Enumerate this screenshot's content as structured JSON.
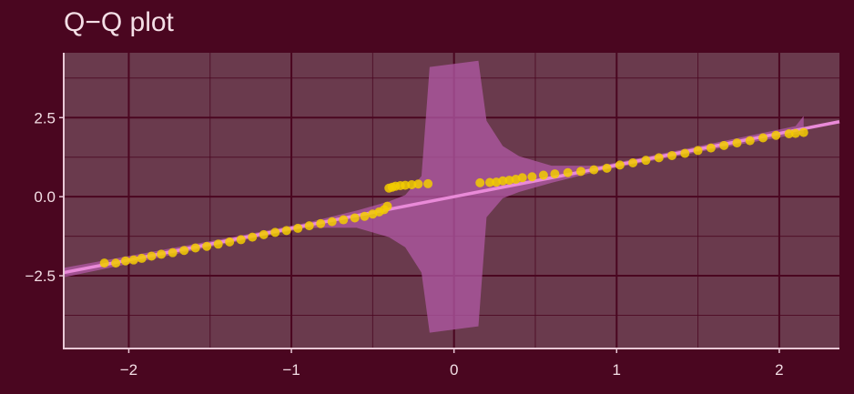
{
  "chart_data": {
    "type": "scatter",
    "title": "Q−Q plot",
    "xlabel": "",
    "ylabel": "",
    "xlim": [
      -2.4,
      2.37
    ],
    "ylim": [
      -4.8,
      4.55
    ],
    "x_ticks": [
      -2,
      -1,
      0,
      1,
      2
    ],
    "x_tick_labels": [
      "−2",
      "−1",
      "0",
      "1",
      "2"
    ],
    "y_ticks": [
      -2.5,
      0.0,
      2.5
    ],
    "y_tick_labels": [
      "−2.5",
      "0.0",
      "2.5"
    ],
    "grid": true,
    "reference_line": {
      "slope": 1,
      "intercept": 0
    },
    "confidence_band": [
      [
        -2.4,
        -2.25,
        -2.55
      ],
      [
        -2.1,
        -1.97,
        -2.23
      ],
      [
        -1.8,
        -1.69,
        -1.91
      ],
      [
        -1.5,
        -1.41,
        -1.59
      ],
      [
        -1.2,
        -1.12,
        -1.28
      ],
      [
        -0.9,
        -0.82,
        -0.98
      ],
      [
        -0.6,
        -0.44,
        -0.98
      ],
      [
        -0.4,
        -0.15,
        -1.28
      ],
      [
        -0.3,
        0.05,
        -1.6
      ],
      [
        -0.2,
        0.65,
        -2.4
      ],
      [
        -0.15,
        4.1,
        -4.3
      ],
      [
        0.15,
        4.3,
        -4.1
      ],
      [
        0.2,
        2.4,
        -0.65
      ],
      [
        0.3,
        1.6,
        -0.05
      ],
      [
        0.4,
        1.28,
        0.15
      ],
      [
        0.6,
        0.98,
        0.44
      ],
      [
        0.9,
        0.98,
        0.82
      ],
      [
        1.2,
        1.28,
        1.12
      ],
      [
        1.5,
        1.59,
        1.41
      ],
      [
        1.8,
        1.91,
        1.69
      ],
      [
        2.1,
        2.23,
        1.97
      ],
      [
        2.15,
        2.55,
        1.97
      ]
    ],
    "series": [
      {
        "points": [
          [
            -2.15,
            -2.1
          ],
          [
            -2.08,
            -2.1
          ],
          [
            -2.02,
            -2.03
          ],
          [
            -1.97,
            -2.0
          ],
          [
            -1.92,
            -1.95
          ],
          [
            -1.86,
            -1.88
          ],
          [
            -1.8,
            -1.82
          ],
          [
            -1.73,
            -1.77
          ],
          [
            -1.66,
            -1.7
          ],
          [
            -1.59,
            -1.62
          ],
          [
            -1.52,
            -1.57
          ],
          [
            -1.45,
            -1.5
          ],
          [
            -1.38,
            -1.43
          ],
          [
            -1.31,
            -1.36
          ],
          [
            -1.24,
            -1.28
          ],
          [
            -1.17,
            -1.2
          ],
          [
            -1.1,
            -1.13
          ],
          [
            -1.03,
            -1.07
          ],
          [
            -0.96,
            -1.0
          ],
          [
            -0.89,
            -0.92
          ],
          [
            -0.82,
            -0.85
          ],
          [
            -0.75,
            -0.79
          ],
          [
            -0.68,
            -0.73
          ],
          [
            -0.61,
            -0.67
          ],
          [
            -0.55,
            -0.62
          ],
          [
            -0.5,
            -0.55
          ],
          [
            -0.46,
            -0.48
          ],
          [
            -0.43,
            -0.41
          ],
          [
            -0.41,
            -0.3
          ],
          [
            -0.4,
            0.27
          ],
          [
            -0.38,
            0.3
          ],
          [
            -0.36,
            0.33
          ],
          [
            -0.33,
            0.35
          ],
          [
            -0.3,
            0.36
          ],
          [
            -0.26,
            0.38
          ],
          [
            -0.22,
            0.4
          ],
          [
            -0.16,
            0.41
          ],
          [
            0.16,
            0.44
          ],
          [
            0.22,
            0.45
          ],
          [
            0.26,
            0.46
          ],
          [
            0.3,
            0.5
          ],
          [
            0.34,
            0.52
          ],
          [
            0.38,
            0.55
          ],
          [
            0.42,
            0.6
          ],
          [
            0.48,
            0.63
          ],
          [
            0.55,
            0.68
          ],
          [
            0.62,
            0.72
          ],
          [
            0.7,
            0.76
          ],
          [
            0.78,
            0.8
          ],
          [
            0.86,
            0.85
          ],
          [
            0.94,
            0.9
          ],
          [
            1.02,
            1.0
          ],
          [
            1.1,
            1.07
          ],
          [
            1.18,
            1.15
          ],
          [
            1.26,
            1.23
          ],
          [
            1.34,
            1.3
          ],
          [
            1.42,
            1.37
          ],
          [
            1.5,
            1.46
          ],
          [
            1.58,
            1.54
          ],
          [
            1.66,
            1.62
          ],
          [
            1.74,
            1.7
          ],
          [
            1.82,
            1.77
          ],
          [
            1.9,
            1.86
          ],
          [
            1.98,
            1.94
          ],
          [
            2.06,
            1.99
          ],
          [
            2.1,
            2.0
          ],
          [
            2.15,
            2.03
          ]
        ]
      }
    ],
    "colors": {
      "background": "#4a0620",
      "panel": "#6a3a4d",
      "grid": "#4a0620",
      "axis": "#e8c8d6",
      "points": "#f2cc00",
      "reference_line": "#e98ad8",
      "band": "#b25aa6"
    }
  }
}
